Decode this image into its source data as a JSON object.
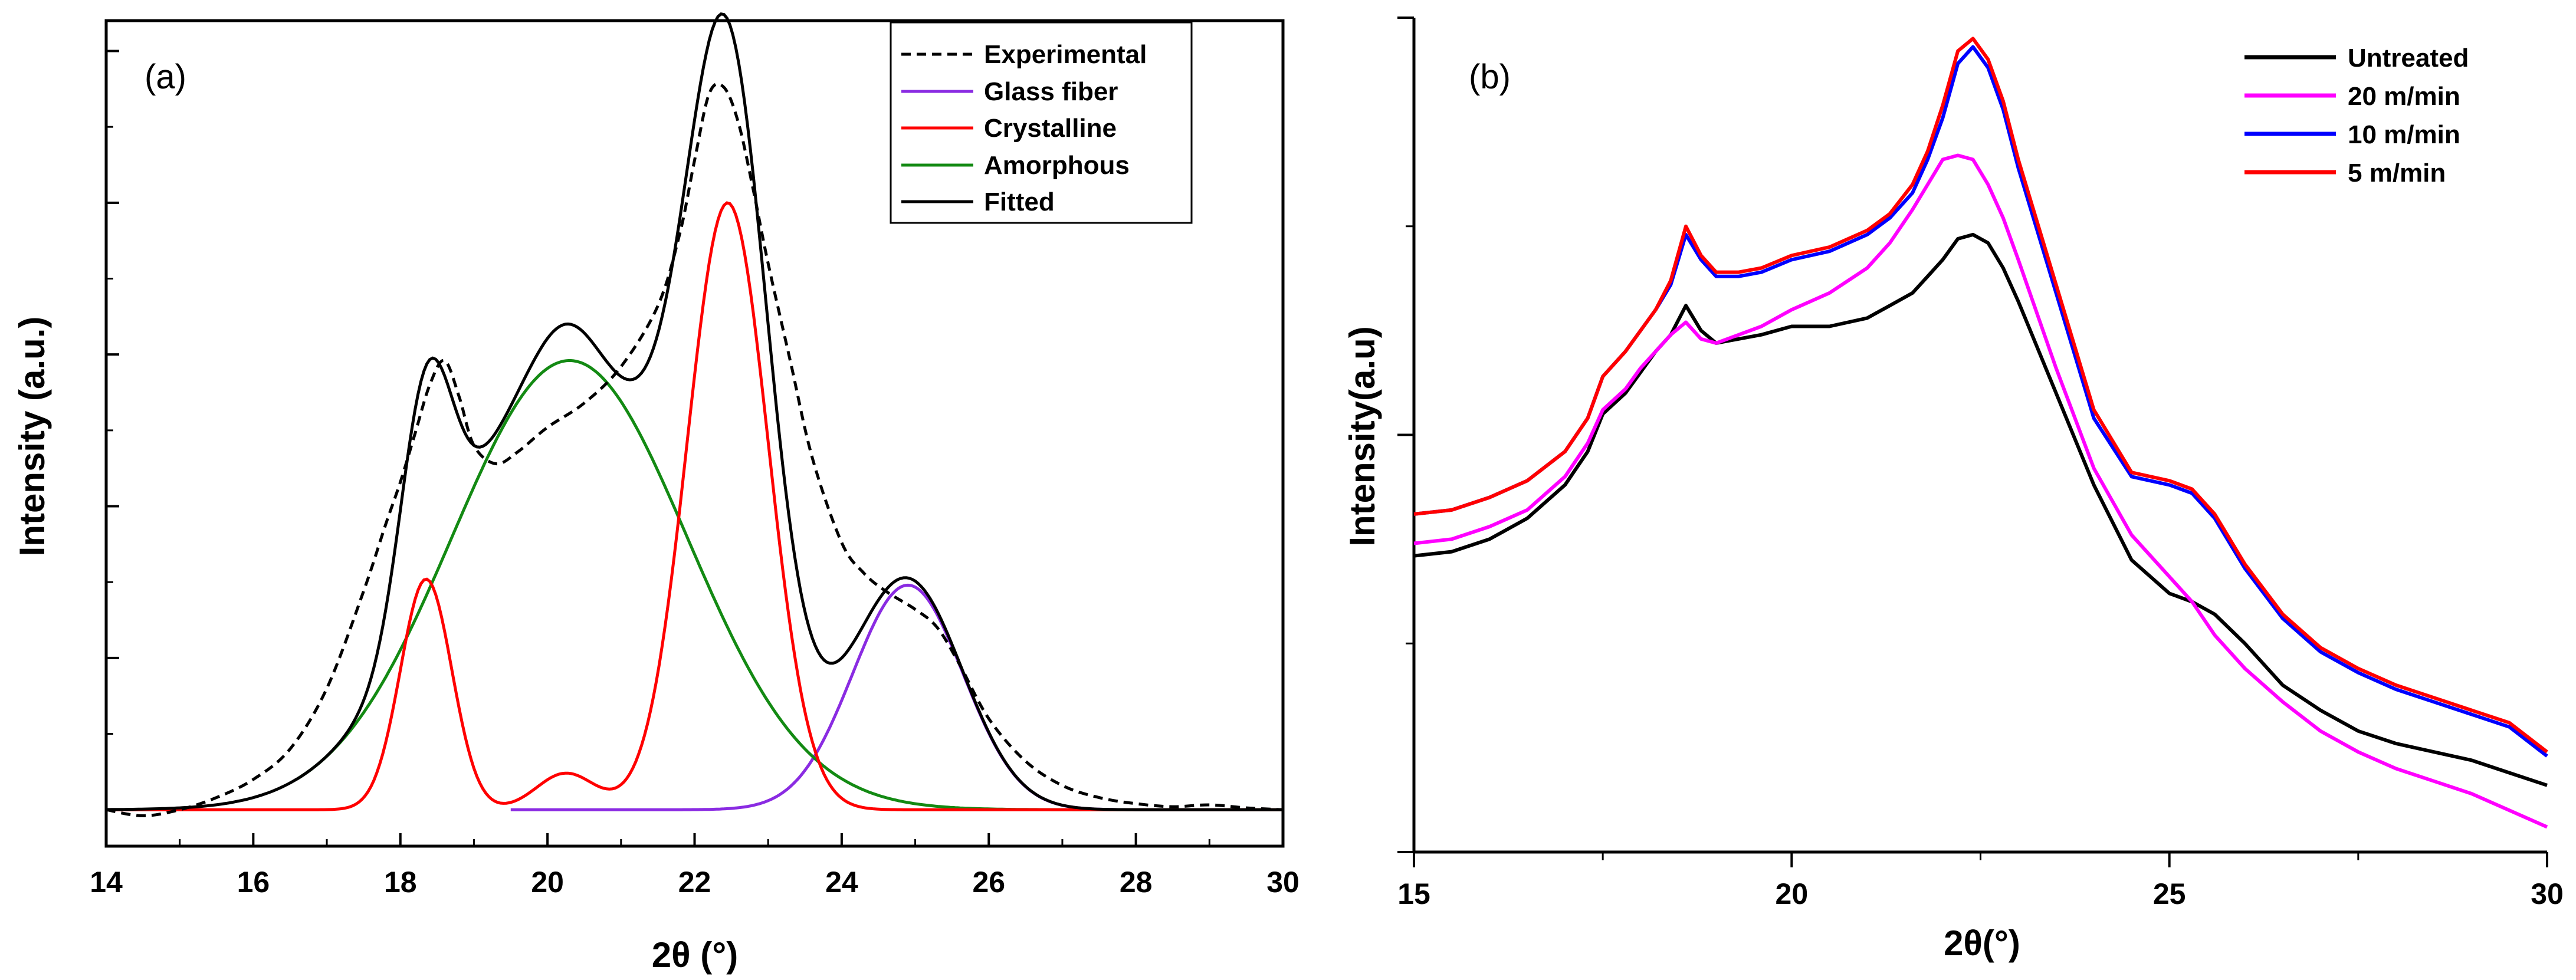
{
  "chart_data": [
    {
      "panel": "(a)",
      "type": "line",
      "xlabel": "2θ (°)",
      "ylabel": "Intensity (a.u.)",
      "xlim": [
        14,
        30
      ],
      "ylim": [
        -0.06,
        1.3
      ],
      "x_ticks": [
        14,
        16,
        18,
        20,
        22,
        24,
        26,
        28,
        30
      ],
      "legend_position": "top-right",
      "series": [
        {
          "name": "Experimental",
          "color": "#000000",
          "style": "dashed",
          "x": [
            14,
            14.5,
            15,
            15.5,
            16,
            16.5,
            17,
            17.5,
            17.8,
            18,
            18.2,
            18.4,
            18.6,
            18.8,
            19,
            19.3,
            19.6,
            20,
            20.5,
            21,
            21.5,
            21.8,
            22,
            22.2,
            22.4,
            22.6,
            22.8,
            23,
            23.3,
            23.6,
            24,
            24.3,
            24.6,
            25,
            25.3,
            25.6,
            26,
            26.5,
            27,
            27.5,
            28,
            28.5,
            29,
            29.5,
            30
          ],
          "y": [
            0,
            -0.01,
            0,
            0.02,
            0.05,
            0.1,
            0.2,
            0.36,
            0.47,
            0.54,
            0.62,
            0.7,
            0.74,
            0.68,
            0.6,
            0.57,
            0.59,
            0.63,
            0.67,
            0.73,
            0.83,
            0.95,
            1.07,
            1.18,
            1.19,
            1.13,
            1.02,
            0.9,
            0.74,
            0.58,
            0.44,
            0.39,
            0.36,
            0.33,
            0.3,
            0.24,
            0.15,
            0.08,
            0.04,
            0.02,
            0.01,
            0.005,
            0.008,
            0.003,
            0
          ]
        },
        {
          "name": "Glass fiber",
          "color": "#8a2be2",
          "style": "solid",
          "peak": {
            "center": 24.9,
            "height": 0.37,
            "sigma": 0.75
          },
          "x_range": [
            19.5,
            29.5
          ]
        },
        {
          "name": "Crystalline",
          "color": "#ff0000",
          "style": "solid",
          "peaks": [
            {
              "center": 18.35,
              "height": 0.38,
              "sigma": 0.35
            },
            {
              "center": 20.25,
              "height": 0.06,
              "sigma": 0.4
            },
            {
              "center": 22.45,
              "height": 1.0,
              "sigma": 0.55
            }
          ],
          "x_range": [
            14,
            30
          ]
        },
        {
          "name": "Amorphous",
          "color": "#138a13",
          "style": "solid",
          "peak": {
            "center": 20.3,
            "height": 0.74,
            "sigma": 1.6
          },
          "x_range": [
            16.6,
            30
          ]
        },
        {
          "name": "Fitted",
          "color": "#000000",
          "style": "solid",
          "formula": "sum of peaks",
          "x_range": [
            14,
            30
          ]
        }
      ]
    },
    {
      "panel": "(b)",
      "type": "line",
      "xlabel": "2θ(°)",
      "ylabel": "Intensity(a.u)",
      "xlim": [
        15,
        30
      ],
      "ylim": [
        0,
        1
      ],
      "x_ticks": [
        15,
        20,
        25,
        30
      ],
      "legend_position": "top-right",
      "x": [
        15,
        15.5,
        16,
        16.5,
        17,
        17.3,
        17.5,
        17.8,
        18,
        18.2,
        18.4,
        18.6,
        18.8,
        19,
        19.3,
        19.6,
        20,
        20.5,
        21,
        21.3,
        21.6,
        21.8,
        22,
        22.2,
        22.4,
        22.6,
        22.8,
        23,
        23.5,
        24,
        24.5,
        25,
        25.3,
        25.6,
        26,
        26.5,
        27,
        27.5,
        28,
        28.5,
        29,
        29.5,
        30
      ],
      "series": [
        {
          "name": "Untreated",
          "color": "#000000",
          "y": [
            0.355,
            0.36,
            0.375,
            0.4,
            0.44,
            0.48,
            0.525,
            0.55,
            0.575,
            0.6,
            0.62,
            0.655,
            0.625,
            0.61,
            0.615,
            0.62,
            0.63,
            0.63,
            0.64,
            0.655,
            0.67,
            0.69,
            0.71,
            0.735,
            0.74,
            0.73,
            0.7,
            0.66,
            0.55,
            0.44,
            0.35,
            0.31,
            0.3,
            0.285,
            0.25,
            0.2,
            0.17,
            0.145,
            0.13,
            0.12,
            0.11,
            0.095,
            0.08
          ]
        },
        {
          "name": "20 m/min",
          "color": "#ff00ff",
          "y": [
            0.37,
            0.375,
            0.39,
            0.41,
            0.45,
            0.49,
            0.53,
            0.555,
            0.58,
            0.6,
            0.62,
            0.635,
            0.615,
            0.61,
            0.62,
            0.63,
            0.65,
            0.67,
            0.7,
            0.73,
            0.77,
            0.8,
            0.83,
            0.835,
            0.83,
            0.8,
            0.76,
            0.71,
            0.58,
            0.46,
            0.38,
            0.33,
            0.3,
            0.26,
            0.22,
            0.18,
            0.145,
            0.12,
            0.1,
            0.085,
            0.07,
            0.05,
            0.03
          ]
        },
        {
          "name": "10 m/min",
          "color": "#0000ff",
          "y": [
            0.405,
            0.41,
            0.425,
            0.445,
            0.48,
            0.52,
            0.57,
            0.6,
            0.625,
            0.65,
            0.68,
            0.74,
            0.71,
            0.69,
            0.69,
            0.695,
            0.71,
            0.72,
            0.74,
            0.76,
            0.79,
            0.83,
            0.88,
            0.945,
            0.965,
            0.94,
            0.89,
            0.82,
            0.67,
            0.52,
            0.45,
            0.44,
            0.43,
            0.4,
            0.34,
            0.28,
            0.24,
            0.215,
            0.195,
            0.18,
            0.165,
            0.15,
            0.115
          ]
        },
        {
          "name": "5 m/min",
          "color": "#ff0000",
          "y": [
            0.405,
            0.41,
            0.425,
            0.445,
            0.48,
            0.52,
            0.57,
            0.6,
            0.625,
            0.65,
            0.685,
            0.75,
            0.715,
            0.695,
            0.695,
            0.7,
            0.715,
            0.725,
            0.745,
            0.765,
            0.8,
            0.84,
            0.895,
            0.96,
            0.975,
            0.95,
            0.9,
            0.83,
            0.68,
            0.53,
            0.455,
            0.445,
            0.435,
            0.405,
            0.345,
            0.285,
            0.245,
            0.22,
            0.2,
            0.185,
            0.17,
            0.155,
            0.12
          ]
        }
      ]
    }
  ]
}
